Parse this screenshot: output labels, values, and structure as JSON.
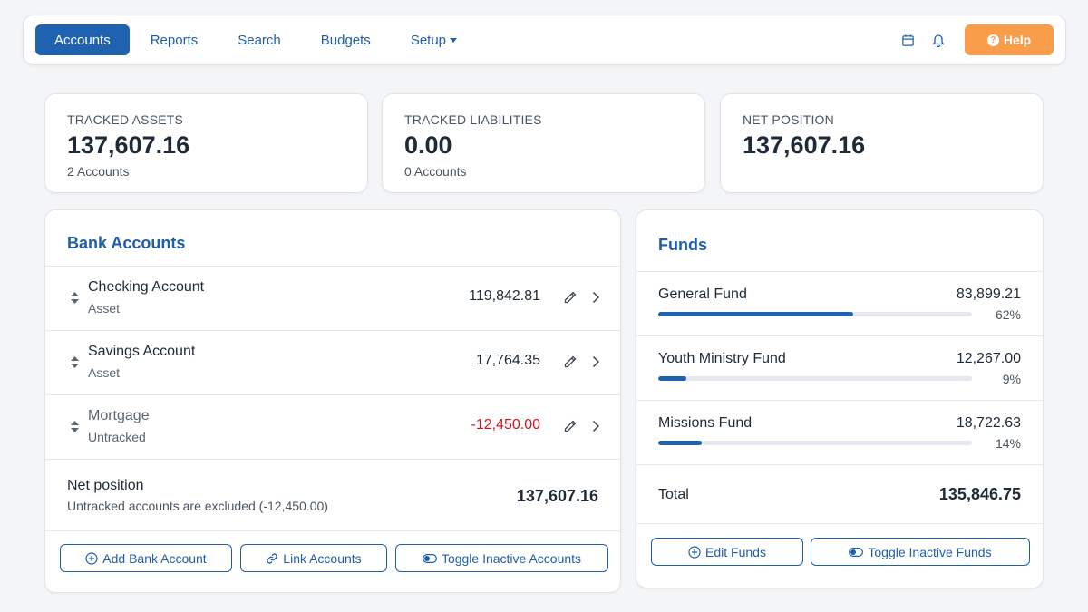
{
  "nav": {
    "items": [
      {
        "label": "Accounts"
      },
      {
        "label": "Reports"
      },
      {
        "label": "Search"
      },
      {
        "label": "Budgets"
      },
      {
        "label": "Setup"
      }
    ],
    "help_label": "Help",
    "icons": [
      "calendar-icon",
      "bell-icon",
      "question-circle-icon"
    ],
    "colors": {
      "primary": "#1f63b0",
      "help": "#f99d4b",
      "negative": "#d0151f"
    }
  },
  "summary": [
    {
      "label": "TRACKED ASSETS",
      "value": "137,607.16",
      "sub": "2 Accounts"
    },
    {
      "label": "TRACKED LIABILITIES",
      "value": "0.00",
      "sub": "0 Accounts"
    },
    {
      "label": "NET POSITION",
      "value": "137,607.16"
    }
  ],
  "bank": {
    "title": "Bank Accounts",
    "accounts": [
      {
        "name": "Checking Account",
        "type": "Asset",
        "balance": "119,842.81"
      },
      {
        "name": "Savings Account",
        "type": "Asset",
        "balance": "17,764.35"
      },
      {
        "name": "Mortgage",
        "type": "Untracked",
        "balance": "-12,450.00"
      }
    ],
    "net": {
      "title": "Net position",
      "sub": "Untracked accounts are excluded (-12,450.00)",
      "value": "137,607.16"
    },
    "buttons": {
      "add": "Add Bank Account",
      "link": "Link Accounts",
      "toggle": "Toggle Inactive Accounts"
    }
  },
  "funds": {
    "title": "Funds",
    "items": [
      {
        "name": "General Fund",
        "amount": "83,899.21",
        "pct": "62%",
        "fraction": 0.62
      },
      {
        "name": "Youth Ministry Fund",
        "amount": "12,267.00",
        "pct": "9%",
        "fraction": 0.09
      },
      {
        "name": "Missions Fund",
        "amount": "18,722.63",
        "pct": "14%",
        "fraction": 0.14
      }
    ],
    "total_label": "Total",
    "total_value": "135,846.75",
    "buttons": {
      "edit": "Edit Funds",
      "toggle": "Toggle Inactive Funds"
    }
  }
}
